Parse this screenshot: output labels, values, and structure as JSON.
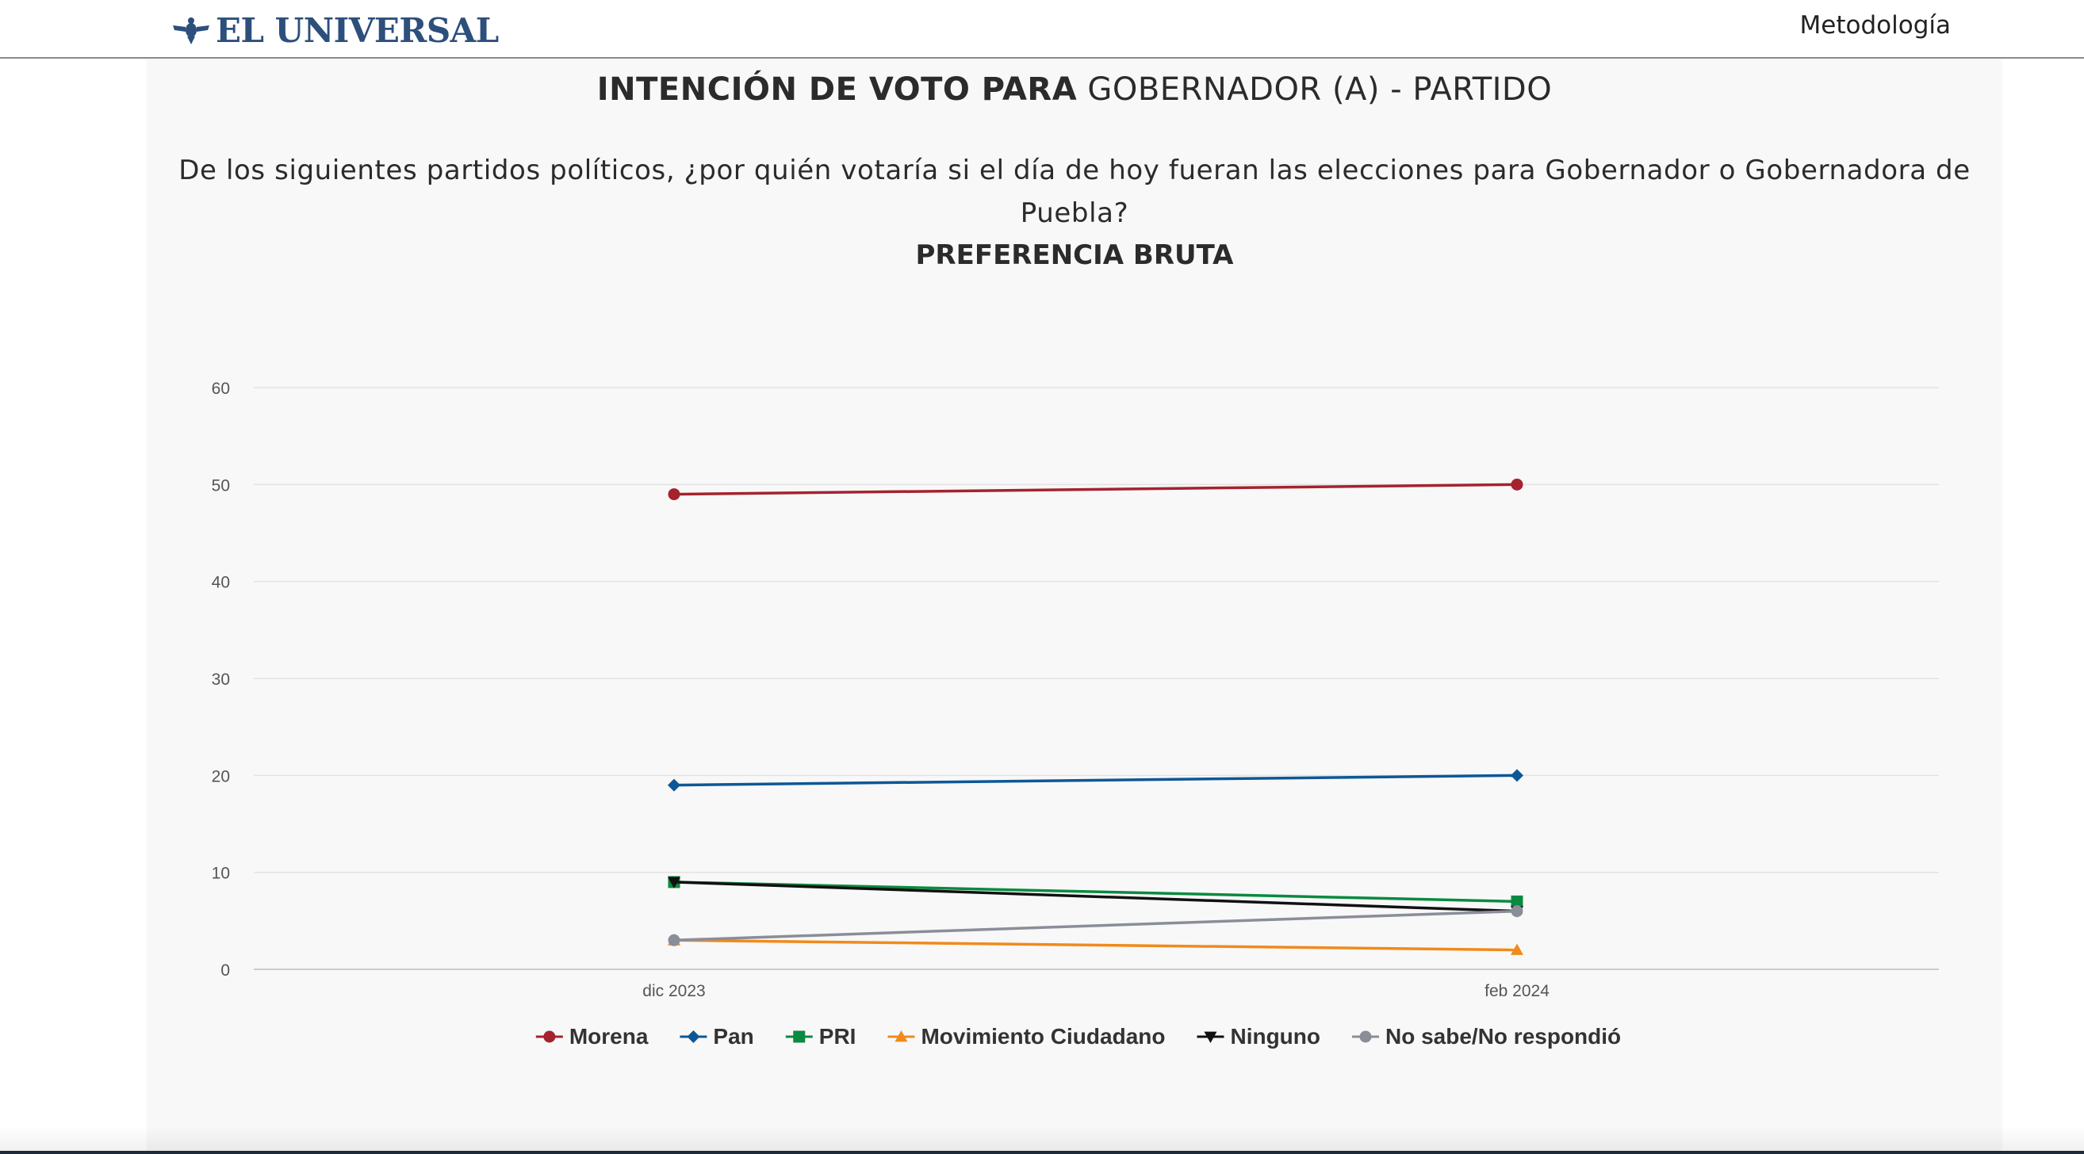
{
  "header": {
    "logo_text": "EL UNIVERSAL",
    "nav_link": "Metodología"
  },
  "title": {
    "bold_part": "INTENCIÓN DE VOTO PARA",
    "regular_part": "GOBERNADOR (A) - PARTIDO"
  },
  "question": "De los siguientes partidos políticos, ¿por quién votaría si el día de hoy fueran las elecciones para Gobernador o Gobernadora de Puebla?",
  "subtitle": "PREFERENCIA BRUTA",
  "colors": {
    "brand": "#2c4f7c",
    "grid": "#e2e2e2",
    "axis_text": "#555555"
  },
  "chart_data": {
    "type": "line",
    "categories": [
      "dic 2023",
      "feb 2024"
    ],
    "ylim": [
      0,
      60
    ],
    "yticks": [
      0,
      10,
      20,
      30,
      40,
      50,
      60
    ],
    "grid": true,
    "legend_position": "bottom-center",
    "series": [
      {
        "name": "Morena",
        "values": [
          49,
          50
        ],
        "color": "#a4232e",
        "marker": "circle"
      },
      {
        "name": "Pan",
        "values": [
          19,
          20
        ],
        "color": "#0d5797",
        "marker": "diamond"
      },
      {
        "name": "PRI",
        "values": [
          9,
          7
        ],
        "color": "#0a8a3f",
        "marker": "square"
      },
      {
        "name": "Movimiento Ciudadano",
        "values": [
          3,
          2
        ],
        "color": "#f08a1c",
        "marker": "triangle"
      },
      {
        "name": "Ninguno",
        "values": [
          9,
          6
        ],
        "color": "#111111",
        "marker": "triangle-down"
      },
      {
        "name": "No sabe/No respondió",
        "values": [
          3,
          6
        ],
        "color": "#8a8e99",
        "marker": "circle"
      }
    ]
  }
}
